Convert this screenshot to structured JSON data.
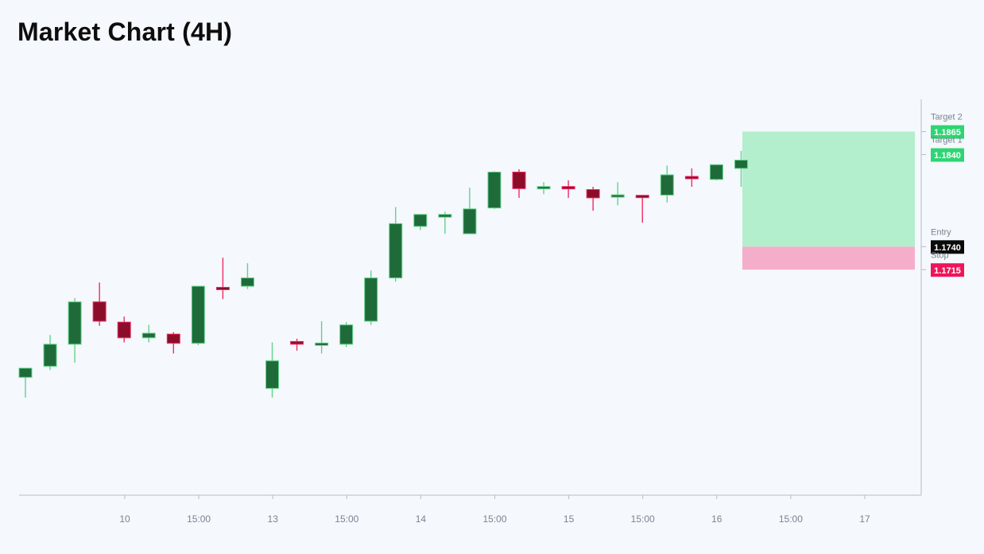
{
  "header": {
    "title": "Market Chart (4H)"
  },
  "chart_data": {
    "type": "candlestick",
    "title": "Market Chart (4H)",
    "timeframe": "4H",
    "x_ticks": [
      "10",
      "15:00",
      "13",
      "15:00",
      "14",
      "15:00",
      "15",
      "15:00",
      "16",
      "15:00",
      "17"
    ],
    "ylim": [
      1.147,
      1.19
    ],
    "candles": [
      {
        "open": 1.1598,
        "high": 1.1604,
        "low": 1.1576,
        "close": 1.1608
      },
      {
        "open": 1.161,
        "high": 1.1644,
        "low": 1.1606,
        "close": 1.1634
      },
      {
        "open": 1.1634,
        "high": 1.1684,
        "low": 1.1614,
        "close": 1.168
      },
      {
        "open": 1.168,
        "high": 1.1701,
        "low": 1.1654,
        "close": 1.1659
      },
      {
        "open": 1.1658,
        "high": 1.1664,
        "low": 1.1636,
        "close": 1.1641
      },
      {
        "open": 1.1641,
        "high": 1.1655,
        "low": 1.1636,
        "close": 1.1646
      },
      {
        "open": 1.1645,
        "high": 1.1647,
        "low": 1.1624,
        "close": 1.1635
      },
      {
        "open": 1.1635,
        "high": 1.1695,
        "low": 1.1633,
        "close": 1.1697
      },
      {
        "open": 1.1695,
        "high": 1.1728,
        "low": 1.1683,
        "close": 1.1694
      },
      {
        "open": 1.1697,
        "high": 1.1722,
        "low": 1.1694,
        "close": 1.1706
      },
      {
        "open": 1.1586,
        "high": 1.1636,
        "low": 1.1576,
        "close": 1.1616
      },
      {
        "open": 1.1637,
        "high": 1.164,
        "low": 1.1627,
        "close": 1.1634
      },
      {
        "open": 1.1634,
        "high": 1.1659,
        "low": 1.1624,
        "close": 1.1634
      },
      {
        "open": 1.1634,
        "high": 1.1658,
        "low": 1.1631,
        "close": 1.1655
      },
      {
        "open": 1.1659,
        "high": 1.1714,
        "low": 1.1655,
        "close": 1.1706
      },
      {
        "open": 1.1706,
        "high": 1.1783,
        "low": 1.1702,
        "close": 1.1765
      },
      {
        "open": 1.1762,
        "high": 1.1774,
        "low": 1.1758,
        "close": 1.1775
      },
      {
        "open": 1.1772,
        "high": 1.1778,
        "low": 1.1754,
        "close": 1.1775
      },
      {
        "open": 1.1754,
        "high": 1.1804,
        "low": 1.1757,
        "close": 1.1781
      },
      {
        "open": 1.1782,
        "high": 1.1822,
        "low": 1.1781,
        "close": 1.1821
      },
      {
        "open": 1.1821,
        "high": 1.1824,
        "low": 1.1793,
        "close": 1.1803
      },
      {
        "open": 1.1803,
        "high": 1.181,
        "low": 1.1797,
        "close": 1.1805
      },
      {
        "open": 1.1805,
        "high": 1.1812,
        "low": 1.1793,
        "close": 1.1803
      },
      {
        "open": 1.1802,
        "high": 1.1805,
        "low": 1.1779,
        "close": 1.1793
      },
      {
        "open": 1.1795,
        "high": 1.181,
        "low": 1.1785,
        "close": 1.1795
      },
      {
        "open": 1.1795,
        "high": 1.1796,
        "low": 1.1766,
        "close": 1.1794
      },
      {
        "open": 1.1796,
        "high": 1.1828,
        "low": 1.1788,
        "close": 1.1818
      },
      {
        "open": 1.1816,
        "high": 1.1825,
        "low": 1.1805,
        "close": 1.1814
      },
      {
        "open": 1.1813,
        "high": 1.1829,
        "low": 1.1812,
        "close": 1.1829
      },
      {
        "open": 1.1825,
        "high": 1.1844,
        "low": 1.1805,
        "close": 1.1834
      }
    ],
    "levels": [
      {
        "label": "Target 2",
        "value": "1.1865",
        "price": 1.1865,
        "color": "#2ed573"
      },
      {
        "label": "Target 1",
        "value": "1.1840",
        "price": 1.184,
        "color": "#2ed573"
      },
      {
        "label": "Entry",
        "value": "1.1740",
        "price": 1.174,
        "color": "#0a0a0a"
      },
      {
        "label": "Stop",
        "value": "1.1715",
        "price": 1.1715,
        "color": "#f0145a"
      }
    ],
    "profit_zone": {
      "from": 1.174,
      "to": 1.1865,
      "color": "#b3eecd"
    },
    "loss_zone": {
      "from": 1.1715,
      "to": 1.174,
      "color": "#f5aeca"
    },
    "colors": {
      "bullish_body": "#1e6b39",
      "bullish_wick": "#63d38a",
      "bearish_body": "#8b0d2a",
      "bearish_wick": "#ef2d63"
    },
    "grid": false
  }
}
